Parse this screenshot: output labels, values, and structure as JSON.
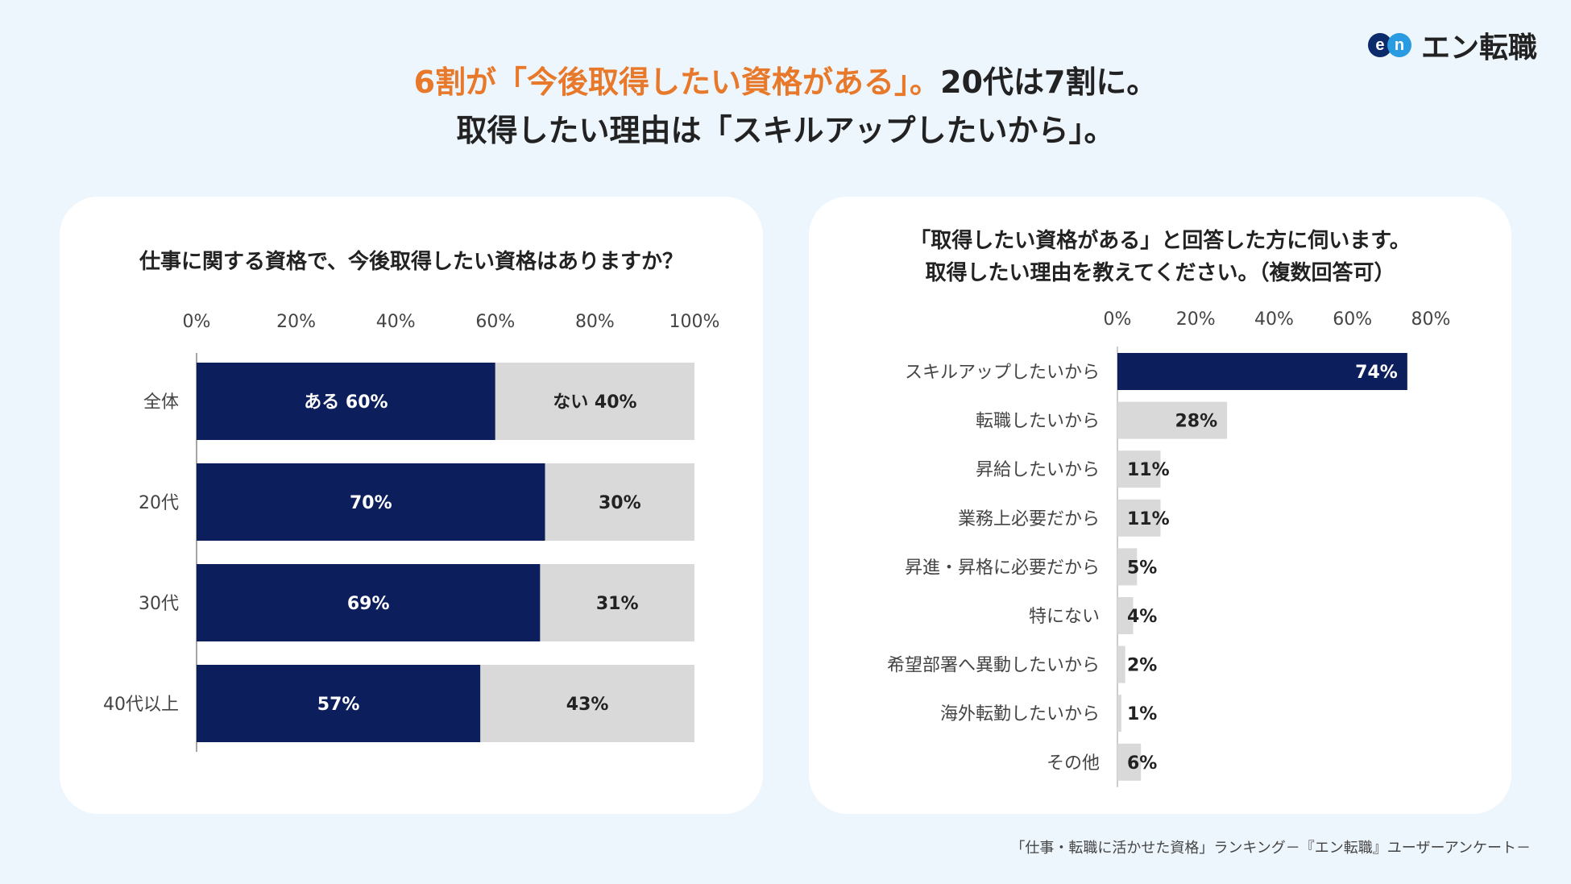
{
  "logo": {
    "mark_e": "e",
    "mark_n": "n",
    "text": "エン転職"
  },
  "headline": {
    "line1_accent": "6割が「今後取得したい資格がある」。",
    "line1_rest": "20代は7割に。",
    "line2": "取得したい理由は「スキルアップしたいから」。"
  },
  "left_card": {
    "title": "仕事に関する資格で、今後取得したい資格はありますか？"
  },
  "right_card": {
    "title_line1": "「取得したい資格がある」と回答した方に伺います。",
    "title_line2": "取得したい理由を教えてください。（複数回答可）"
  },
  "source": "「仕事・転職に活かせた資格」ランキング－『エン転職』ユーザーアンケート－",
  "colors": {
    "navy": "#0c1f5c",
    "gray": "#d9d9d9",
    "orange": "#e8782a"
  },
  "chart_data": [
    {
      "type": "bar",
      "orientation": "horizontal",
      "stacked": true,
      "categories": [
        "全体",
        "20代",
        "30代",
        "40代以上"
      ],
      "series": [
        {
          "name": "ある",
          "values": [
            60,
            70,
            69,
            57
          ],
          "labels": [
            "ある 60%",
            "70%",
            "69%",
            "57%"
          ]
        },
        {
          "name": "ない",
          "values": [
            40,
            30,
            31,
            43
          ],
          "labels": [
            "ない 40%",
            "30%",
            "31%",
            "43%"
          ]
        }
      ],
      "xlim": [
        0,
        100
      ],
      "xticks": [
        "0%",
        "20%",
        "40%",
        "60%",
        "80%",
        "100%"
      ]
    },
    {
      "type": "bar",
      "orientation": "horizontal",
      "categories": [
        "スキルアップしたいから",
        "転職したいから",
        "昇給したいから",
        "業務上必要だから",
        "昇進・昇格に必要だから",
        "特にない",
        "希望部署へ異動したいから",
        "海外転勤したいから",
        "その他"
      ],
      "values": [
        74,
        28,
        11,
        11,
        5,
        4,
        2,
        1,
        6
      ],
      "labels": [
        "74%",
        "28%",
        "11%",
        "11%",
        "5%",
        "4%",
        "2%",
        "1%",
        "6%"
      ],
      "xlim": [
        0,
        80
      ],
      "xticks": [
        "0%",
        "20%",
        "40%",
        "60%",
        "80%"
      ]
    }
  ]
}
